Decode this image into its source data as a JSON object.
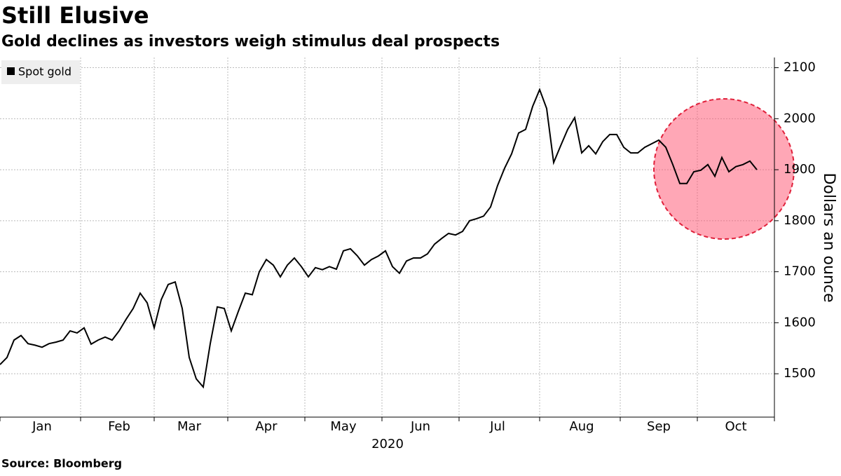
{
  "chart_data": {
    "type": "line",
    "title": "Still Elusive",
    "subtitle": "Gold declines as investors weigh stimulus deal prospects",
    "source": "Source: Bloomberg",
    "x_label": "2020",
    "y_label": "Dollars an ounce",
    "categories": [
      null,
      null,
      null,
      null,
      null,
      null,
      "Jan",
      null,
      null,
      null,
      null,
      null,
      null,
      null,
      null,
      null,
      null,
      "Feb",
      null,
      null,
      null,
      null,
      null,
      null,
      null,
      null,
      null,
      "Mar",
      null,
      null,
      null,
      null,
      null,
      null,
      null,
      null,
      null,
      null,
      "Apr",
      null,
      null,
      null,
      null,
      null,
      null,
      null,
      null,
      null,
      null,
      "May",
      null,
      null,
      null,
      null,
      null,
      null,
      null,
      null,
      null,
      null,
      "Jun",
      null,
      null,
      null,
      null,
      null,
      null,
      null,
      null,
      null,
      null,
      "Jul",
      null,
      null,
      null,
      null,
      null,
      null,
      null,
      null,
      null,
      null,
      null,
      "Aug",
      null,
      null,
      null,
      null,
      null,
      null,
      null,
      null,
      null,
      null,
      "Sep",
      null,
      null,
      null,
      null,
      null,
      null,
      null,
      null,
      null,
      null,
      "Oct",
      null,
      null,
      null
    ],
    "series": [
      {
        "name": "Spot gold",
        "color": "#000000",
        "values": [
          1518,
          1532,
          1566,
          1575,
          1559,
          1556,
          1552,
          1559,
          1562,
          1566,
          1584,
          1580,
          1590,
          1558,
          1566,
          1572,
          1566,
          1584,
          1607,
          1628,
          1658,
          1639,
          1590,
          1645,
          1675,
          1680,
          1628,
          1532,
          1490,
          1474,
          1559,
          1631,
          1628,
          1584,
          1622,
          1658,
          1655,
          1700,
          1724,
          1713,
          1690,
          1713,
          1727,
          1710,
          1690,
          1708,
          1704,
          1710,
          1705,
          1741,
          1745,
          1731,
          1713,
          1724,
          1731,
          1741,
          1710,
          1697,
          1721,
          1727,
          1727,
          1735,
          1754,
          1765,
          1775,
          1772,
          1779,
          1800,
          1804,
          1809,
          1827,
          1869,
          1903,
          1931,
          1972,
          1979,
          2024,
          2057,
          2020,
          1914,
          1947,
          1979,
          2002,
          1933,
          1947,
          1931,
          1955,
          1969,
          1969,
          1944,
          1933,
          1933,
          1944,
          1951,
          1958,
          1944,
          1910,
          1873,
          1873,
          1896,
          1899,
          1910,
          1887,
          1924,
          1896,
          1906,
          1910,
          1917,
          1900
        ]
      }
    ],
    "ylim": [
      1415,
      2120
    ],
    "yticks": [
      1500,
      1600,
      1700,
      1800,
      1900,
      2000,
      2100
    ],
    "grid": true,
    "legend": "top-left"
  }
}
